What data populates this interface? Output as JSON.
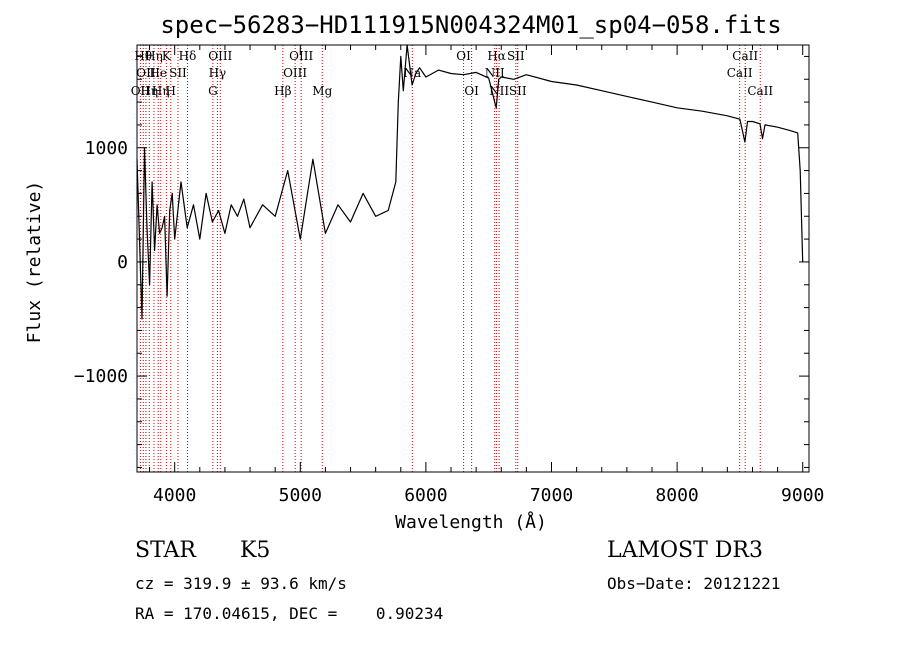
{
  "chart_data": {
    "type": "line",
    "title": "spec−56283−HD111915N004324M01_sp04−058.fits",
    "xlabel": "Wavelength (Å)",
    "ylabel": "Flux (relative)",
    "xlim": [
      3700,
      9050
    ],
    "ylim": [
      -1840,
      1900
    ],
    "xticks": [
      4000,
      5000,
      6000,
      7000,
      8000,
      9000
    ],
    "xtick_labels": [
      "4000",
      "5000",
      "6000",
      "7000",
      "8000",
      "9000"
    ],
    "yticks": [
      -1000,
      0,
      1000
    ],
    "ytick_labels": [
      "−1000",
      "0",
      "1000"
    ],
    "series": [
      {
        "name": "spectrum",
        "color": "#000000",
        "x": [
          3700,
          3720,
          3740,
          3760,
          3780,
          3800,
          3820,
          3840,
          3860,
          3880,
          3900,
          3920,
          3940,
          3960,
          3980,
          4000,
          4050,
          4100,
          4150,
          4200,
          4250,
          4300,
          4350,
          4400,
          4450,
          4500,
          4550,
          4600,
          4700,
          4800,
          4900,
          5000,
          5100,
          5200,
          5300,
          5400,
          5500,
          5600,
          5700,
          5760,
          5780,
          5800,
          5820,
          5850,
          5890,
          5920,
          5950,
          6000,
          6100,
          6200,
          6300,
          6400,
          6500,
          6560,
          6580,
          6600,
          6700,
          6800,
          7000,
          7200,
          7400,
          7600,
          7800,
          8000,
          8200,
          8400,
          8500,
          8540,
          8560,
          8600,
          8660,
          8680,
          8700,
          8800,
          8900,
          8960,
          8980,
          9000
        ],
        "y": [
          900,
          200,
          -500,
          1000,
          300,
          -200,
          700,
          100,
          500,
          250,
          300,
          400,
          -300,
          450,
          600,
          200,
          700,
          300,
          500,
          200,
          600,
          350,
          450,
          250,
          500,
          400,
          550,
          300,
          500,
          400,
          800,
          200,
          900,
          250,
          500,
          350,
          600,
          400,
          450,
          700,
          1400,
          1800,
          1500,
          1900,
          1550,
          1650,
          1700,
          1620,
          1680,
          1650,
          1640,
          1660,
          1610,
          1350,
          1600,
          1620,
          1600,
          1640,
          1580,
          1550,
          1500,
          1450,
          1400,
          1350,
          1320,
          1280,
          1250,
          1050,
          1230,
          1230,
          1210,
          1080,
          1200,
          1180,
          1150,
          1130,
          800,
          0
        ]
      }
    ],
    "reference_lines": [
      {
        "x": 3727,
        "label": "OII",
        "row": 3
      },
      {
        "x": 3750,
        "label": "Hθ",
        "row": 1
      },
      {
        "x": 3771,
        "label": "OII",
        "row": 2
      },
      {
        "x": 3798,
        "label": "Hη",
        "row": 3
      },
      {
        "x": 3835,
        "label": "Hη",
        "row": 1
      },
      {
        "x": 3869,
        "label": "He",
        "row": 2
      },
      {
        "x": 3889,
        "label": "Hη",
        "row": 3
      },
      {
        "x": 3934,
        "label": "K",
        "row": 1
      },
      {
        "x": 3969,
        "label": "H",
        "row": 3
      },
      {
        "x": 4026,
        "label": "SII",
        "row": 2
      },
      {
        "x": 4102,
        "label": "Hδ",
        "row": 1
      },
      {
        "x": 4304,
        "label": "G",
        "row": 3
      },
      {
        "x": 4340,
        "label": "Hγ",
        "row": 2
      },
      {
        "x": 4363,
        "label": "OIII",
        "row": 1
      },
      {
        "x": 4861,
        "label": "Hβ",
        "row": 3
      },
      {
        "x": 4959,
        "label": "OIII",
        "row": 2
      },
      {
        "x": 5007,
        "label": "OIII",
        "row": 1
      },
      {
        "x": 5175,
        "label": "Mg",
        "row": 3
      },
      {
        "x": 5892,
        "label": "Na",
        "row": 2
      },
      {
        "x": 6300,
        "label": "OI",
        "row": 1
      },
      {
        "x": 6364,
        "label": "OI",
        "row": 3
      },
      {
        "x": 6548,
        "label": "NII",
        "row": 2
      },
      {
        "x": 6563,
        "label": "Hα",
        "row": 1
      },
      {
        "x": 6583,
        "label": "NII",
        "row": 3
      },
      {
        "x": 6716,
        "label": "SII",
        "row": 1
      },
      {
        "x": 6731,
        "label": "SII",
        "row": 3
      },
      {
        "x": 8498,
        "label": "CaII",
        "row": 2
      },
      {
        "x": 8542,
        "label": "CaII",
        "row": 1
      },
      {
        "x": 8662,
        "label": "CaII",
        "row": 3
      }
    ]
  },
  "info": {
    "object_class": "STAR",
    "subclass": "K5",
    "survey": "LAMOST DR3",
    "redshift": "cz = 319.9 ± 93.6 km/s",
    "obs_date": "Obs−Date: 20121221",
    "coords": "RA = 170.04615, DEC =    0.90234"
  }
}
